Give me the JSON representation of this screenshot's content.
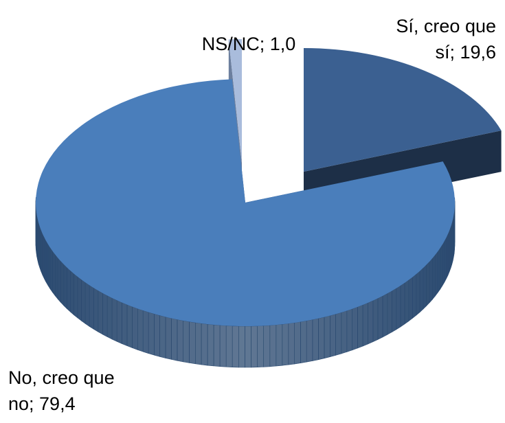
{
  "chart_data": {
    "type": "pie",
    "values": [
      19.6,
      79.4,
      1.0
    ],
    "value_labels": [
      [
        "Sí, creo que",
        "sí; 19,6"
      ],
      [
        "No, creo que",
        "no; 79,4"
      ],
      [
        "NS/NC; 1,0"
      ]
    ],
    "colors": [
      "#3b6091",
      "#4a7ebb",
      "#a9bcdc"
    ],
    "side_colors": [
      "#1d2f47",
      "#2b4a70",
      "#6c7f9e"
    ],
    "exploded": true
  }
}
